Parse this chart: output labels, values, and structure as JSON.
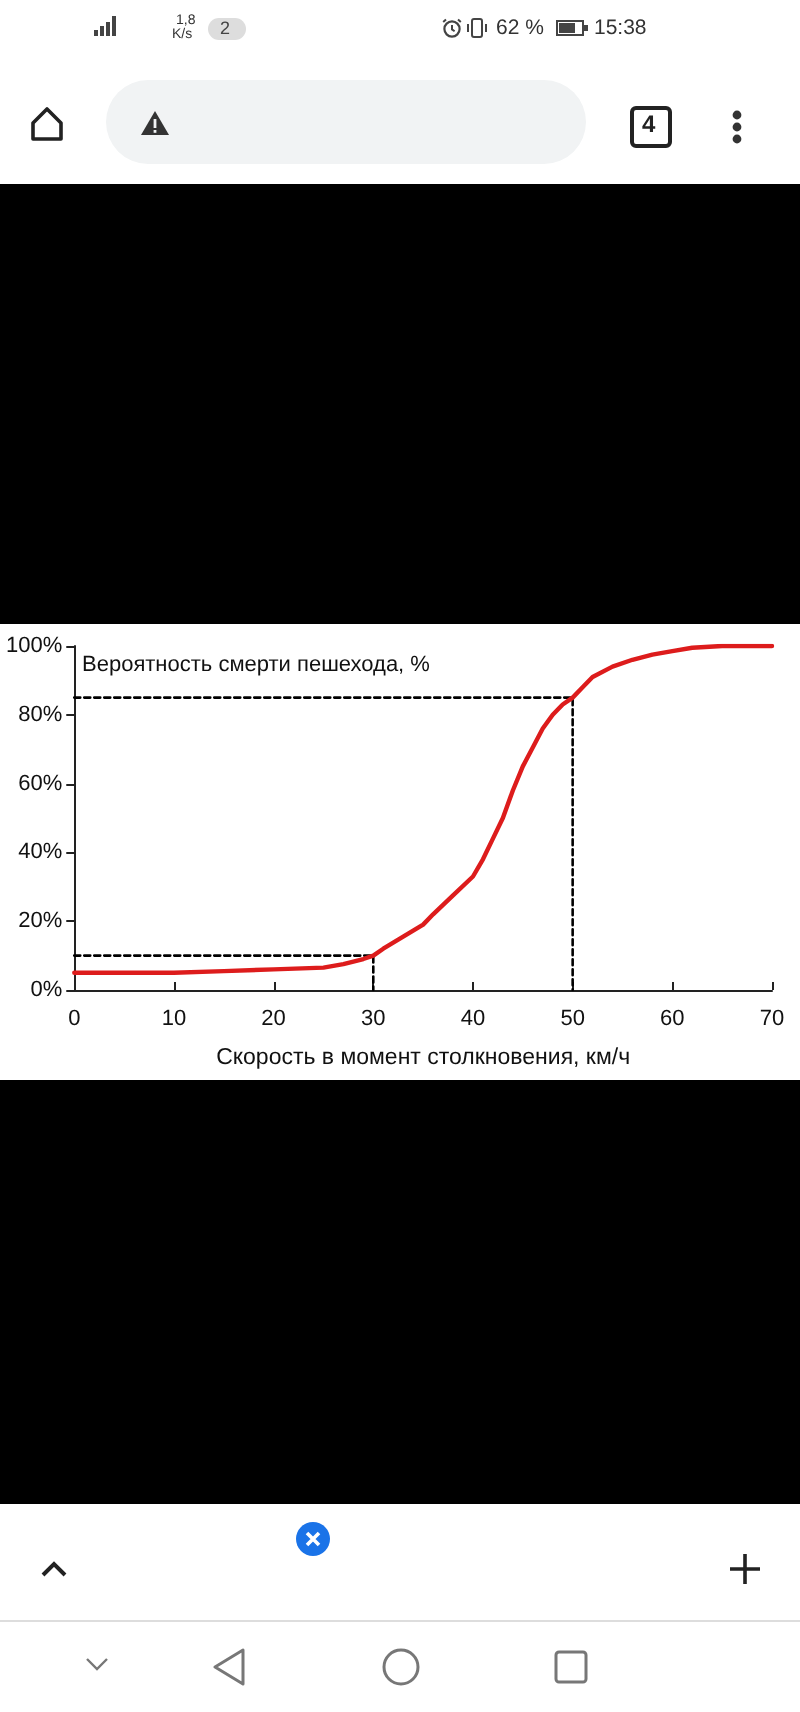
{
  "chart_data": {
    "type": "line",
    "xlabel": "Скорость в момент столкновения, км/ч",
    "ylabel": "Вероятность смерти пешехода, %",
    "annotations": [
      "1,8",
      "K/s",
      "2",
      "62 %",
      "15:38",
      "4"
    ],
    "xlim": [
      0,
      70
    ],
    "xticks": [
      0,
      10,
      20,
      30,
      40,
      50,
      60,
      70
    ],
    "ylim": [
      0,
      100
    ],
    "yticks": [
      {
        "value": 0,
        "label": "0%"
      },
      {
        "value": 20,
        "label": "20%"
      },
      {
        "value": 40,
        "label": "40%"
      },
      {
        "value": 60,
        "label": "60%"
      },
      {
        "value": 80,
        "label": "80%"
      },
      {
        "value": 100,
        "label": "100%"
      }
    ],
    "series": [
      {
        "color": "#dd1c1c",
        "x": [
          0,
          5,
          10,
          15,
          20,
          25,
          27,
          29,
          30,
          31,
          33,
          35,
          36,
          38,
          40,
          41,
          42,
          43,
          44,
          45,
          46,
          47,
          48,
          49,
          50,
          51,
          52,
          54,
          56,
          58,
          60,
          62,
          65,
          70
        ],
        "values": [
          5,
          5,
          5,
          5.5,
          6,
          6.5,
          7.5,
          9,
          10,
          12,
          15.5,
          19,
          22,
          27.5,
          33,
          38,
          44,
          50,
          58,
          65,
          70.5,
          76,
          80,
          83,
          85,
          88,
          91,
          94,
          96,
          97.5,
          98.5,
          99.5,
          100,
          100
        ]
      },
      {
        "color": "#000000",
        "line_style": "dashed",
        "x": [
          0,
          50,
          50
        ],
        "values": [
          85,
          85,
          0
        ]
      },
      {
        "color": "#000000",
        "line_style": "dashed",
        "x": [
          0,
          30,
          30
        ],
        "values": [
          10,
          10,
          0
        ]
      }
    ]
  }
}
